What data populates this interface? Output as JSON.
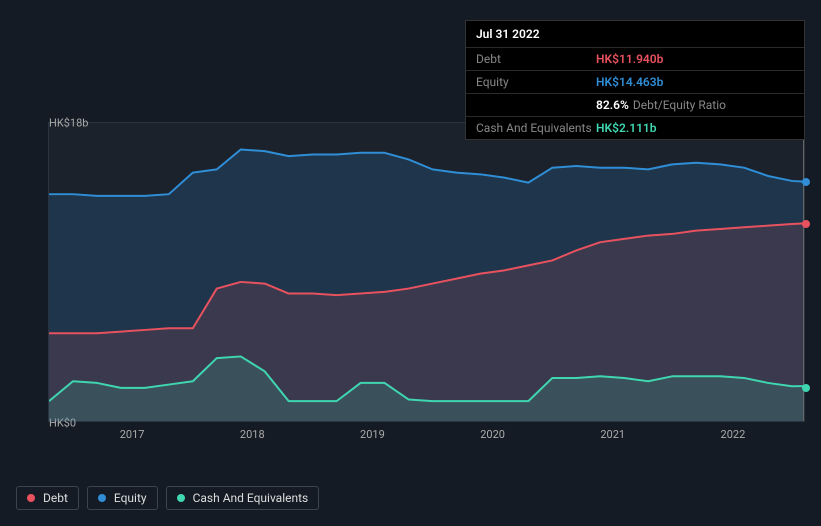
{
  "tooltip": {
    "date": "Jul 31 2022",
    "rows": [
      {
        "label": "Debt",
        "value": "HK$11.940b",
        "color": "#e8525f"
      },
      {
        "label": "Equity",
        "value": "HK$14.463b",
        "color": "#2f8ed6"
      },
      {
        "label": "",
        "value": "82.6%",
        "suffix": "Debt/Equity Ratio",
        "color": "#ffffff"
      },
      {
        "label": "Cash And Equivalents",
        "value": "HK$2.111b",
        "color": "#3fd6b0"
      }
    ]
  },
  "chart": {
    "type": "area",
    "background": "#1b222c",
    "grid_color": "#2a3340",
    "ylim": [
      0,
      18
    ],
    "y_ticks": [
      {
        "v": 18,
        "label": "HK$18b"
      },
      {
        "v": 0,
        "label": "HK$0"
      }
    ],
    "xlim": [
      2016.3,
      2022.6
    ],
    "x_ticks": [
      2017,
      2018,
      2019,
      2020,
      2021,
      2022
    ],
    "series": [
      {
        "name": "Equity",
        "color": "#2f8ed6",
        "fill": "rgba(47,142,214,0.18)",
        "line_width": 2,
        "points": [
          [
            2016.3,
            13.7
          ],
          [
            2016.5,
            13.7
          ],
          [
            2016.7,
            13.6
          ],
          [
            2016.9,
            13.6
          ],
          [
            2017.1,
            13.6
          ],
          [
            2017.3,
            13.7
          ],
          [
            2017.5,
            15.0
          ],
          [
            2017.7,
            15.2
          ],
          [
            2017.9,
            16.4
          ],
          [
            2018.1,
            16.3
          ],
          [
            2018.3,
            16.0
          ],
          [
            2018.5,
            16.1
          ],
          [
            2018.7,
            16.1
          ],
          [
            2018.9,
            16.2
          ],
          [
            2019.1,
            16.2
          ],
          [
            2019.3,
            15.8
          ],
          [
            2019.5,
            15.2
          ],
          [
            2019.7,
            15.0
          ],
          [
            2019.9,
            14.9
          ],
          [
            2020.1,
            14.7
          ],
          [
            2020.3,
            14.4
          ],
          [
            2020.5,
            15.3
          ],
          [
            2020.7,
            15.4
          ],
          [
            2020.9,
            15.3
          ],
          [
            2021.1,
            15.3
          ],
          [
            2021.3,
            15.2
          ],
          [
            2021.5,
            15.5
          ],
          [
            2021.7,
            15.6
          ],
          [
            2021.9,
            15.5
          ],
          [
            2022.1,
            15.3
          ],
          [
            2022.3,
            14.8
          ],
          [
            2022.5,
            14.5
          ],
          [
            2022.6,
            14.46
          ]
        ]
      },
      {
        "name": "Debt",
        "color": "#e8525f",
        "fill": "rgba(232,82,95,0.14)",
        "line_width": 2,
        "points": [
          [
            2016.3,
            5.3
          ],
          [
            2016.5,
            5.3
          ],
          [
            2016.7,
            5.3
          ],
          [
            2016.9,
            5.4
          ],
          [
            2017.1,
            5.5
          ],
          [
            2017.3,
            5.6
          ],
          [
            2017.5,
            5.6
          ],
          [
            2017.7,
            8.0
          ],
          [
            2017.9,
            8.4
          ],
          [
            2018.1,
            8.3
          ],
          [
            2018.3,
            7.7
          ],
          [
            2018.5,
            7.7
          ],
          [
            2018.7,
            7.6
          ],
          [
            2018.9,
            7.7
          ],
          [
            2019.1,
            7.8
          ],
          [
            2019.3,
            8.0
          ],
          [
            2019.5,
            8.3
          ],
          [
            2019.7,
            8.6
          ],
          [
            2019.9,
            8.9
          ],
          [
            2020.1,
            9.1
          ],
          [
            2020.3,
            9.4
          ],
          [
            2020.5,
            9.7
          ],
          [
            2020.7,
            10.3
          ],
          [
            2020.9,
            10.8
          ],
          [
            2021.1,
            11.0
          ],
          [
            2021.3,
            11.2
          ],
          [
            2021.5,
            11.3
          ],
          [
            2021.7,
            11.5
          ],
          [
            2021.9,
            11.6
          ],
          [
            2022.1,
            11.7
          ],
          [
            2022.3,
            11.8
          ],
          [
            2022.5,
            11.9
          ],
          [
            2022.6,
            11.94
          ]
        ]
      },
      {
        "name": "Cash And Equivalents",
        "color": "#3fd6b0",
        "fill": "rgba(63,214,176,0.16)",
        "line_width": 2,
        "points": [
          [
            2016.3,
            1.2
          ],
          [
            2016.5,
            2.4
          ],
          [
            2016.7,
            2.3
          ],
          [
            2016.9,
            2.0
          ],
          [
            2017.1,
            2.0
          ],
          [
            2017.3,
            2.2
          ],
          [
            2017.5,
            2.4
          ],
          [
            2017.7,
            3.8
          ],
          [
            2017.9,
            3.9
          ],
          [
            2018.1,
            3.0
          ],
          [
            2018.3,
            1.2
          ],
          [
            2018.5,
            1.2
          ],
          [
            2018.7,
            1.2
          ],
          [
            2018.9,
            2.3
          ],
          [
            2019.1,
            2.3
          ],
          [
            2019.3,
            1.3
          ],
          [
            2019.5,
            1.2
          ],
          [
            2019.7,
            1.2
          ],
          [
            2019.9,
            1.2
          ],
          [
            2020.1,
            1.2
          ],
          [
            2020.3,
            1.2
          ],
          [
            2020.5,
            2.6
          ],
          [
            2020.7,
            2.6
          ],
          [
            2020.9,
            2.7
          ],
          [
            2021.1,
            2.6
          ],
          [
            2021.3,
            2.4
          ],
          [
            2021.5,
            2.7
          ],
          [
            2021.7,
            2.7
          ],
          [
            2021.9,
            2.7
          ],
          [
            2022.1,
            2.6
          ],
          [
            2022.3,
            2.3
          ],
          [
            2022.5,
            2.1
          ],
          [
            2022.6,
            2.11
          ]
        ]
      }
    ],
    "end_markers": [
      {
        "color": "#2f8ed6",
        "y": 14.46
      },
      {
        "color": "#e8525f",
        "y": 11.94
      },
      {
        "color": "#3fd6b0",
        "y": 2.11
      }
    ]
  },
  "legend": [
    {
      "label": "Debt",
      "color": "#e8525f"
    },
    {
      "label": "Equity",
      "color": "#2f8ed6"
    },
    {
      "label": "Cash And Equivalents",
      "color": "#3fd6b0"
    }
  ]
}
